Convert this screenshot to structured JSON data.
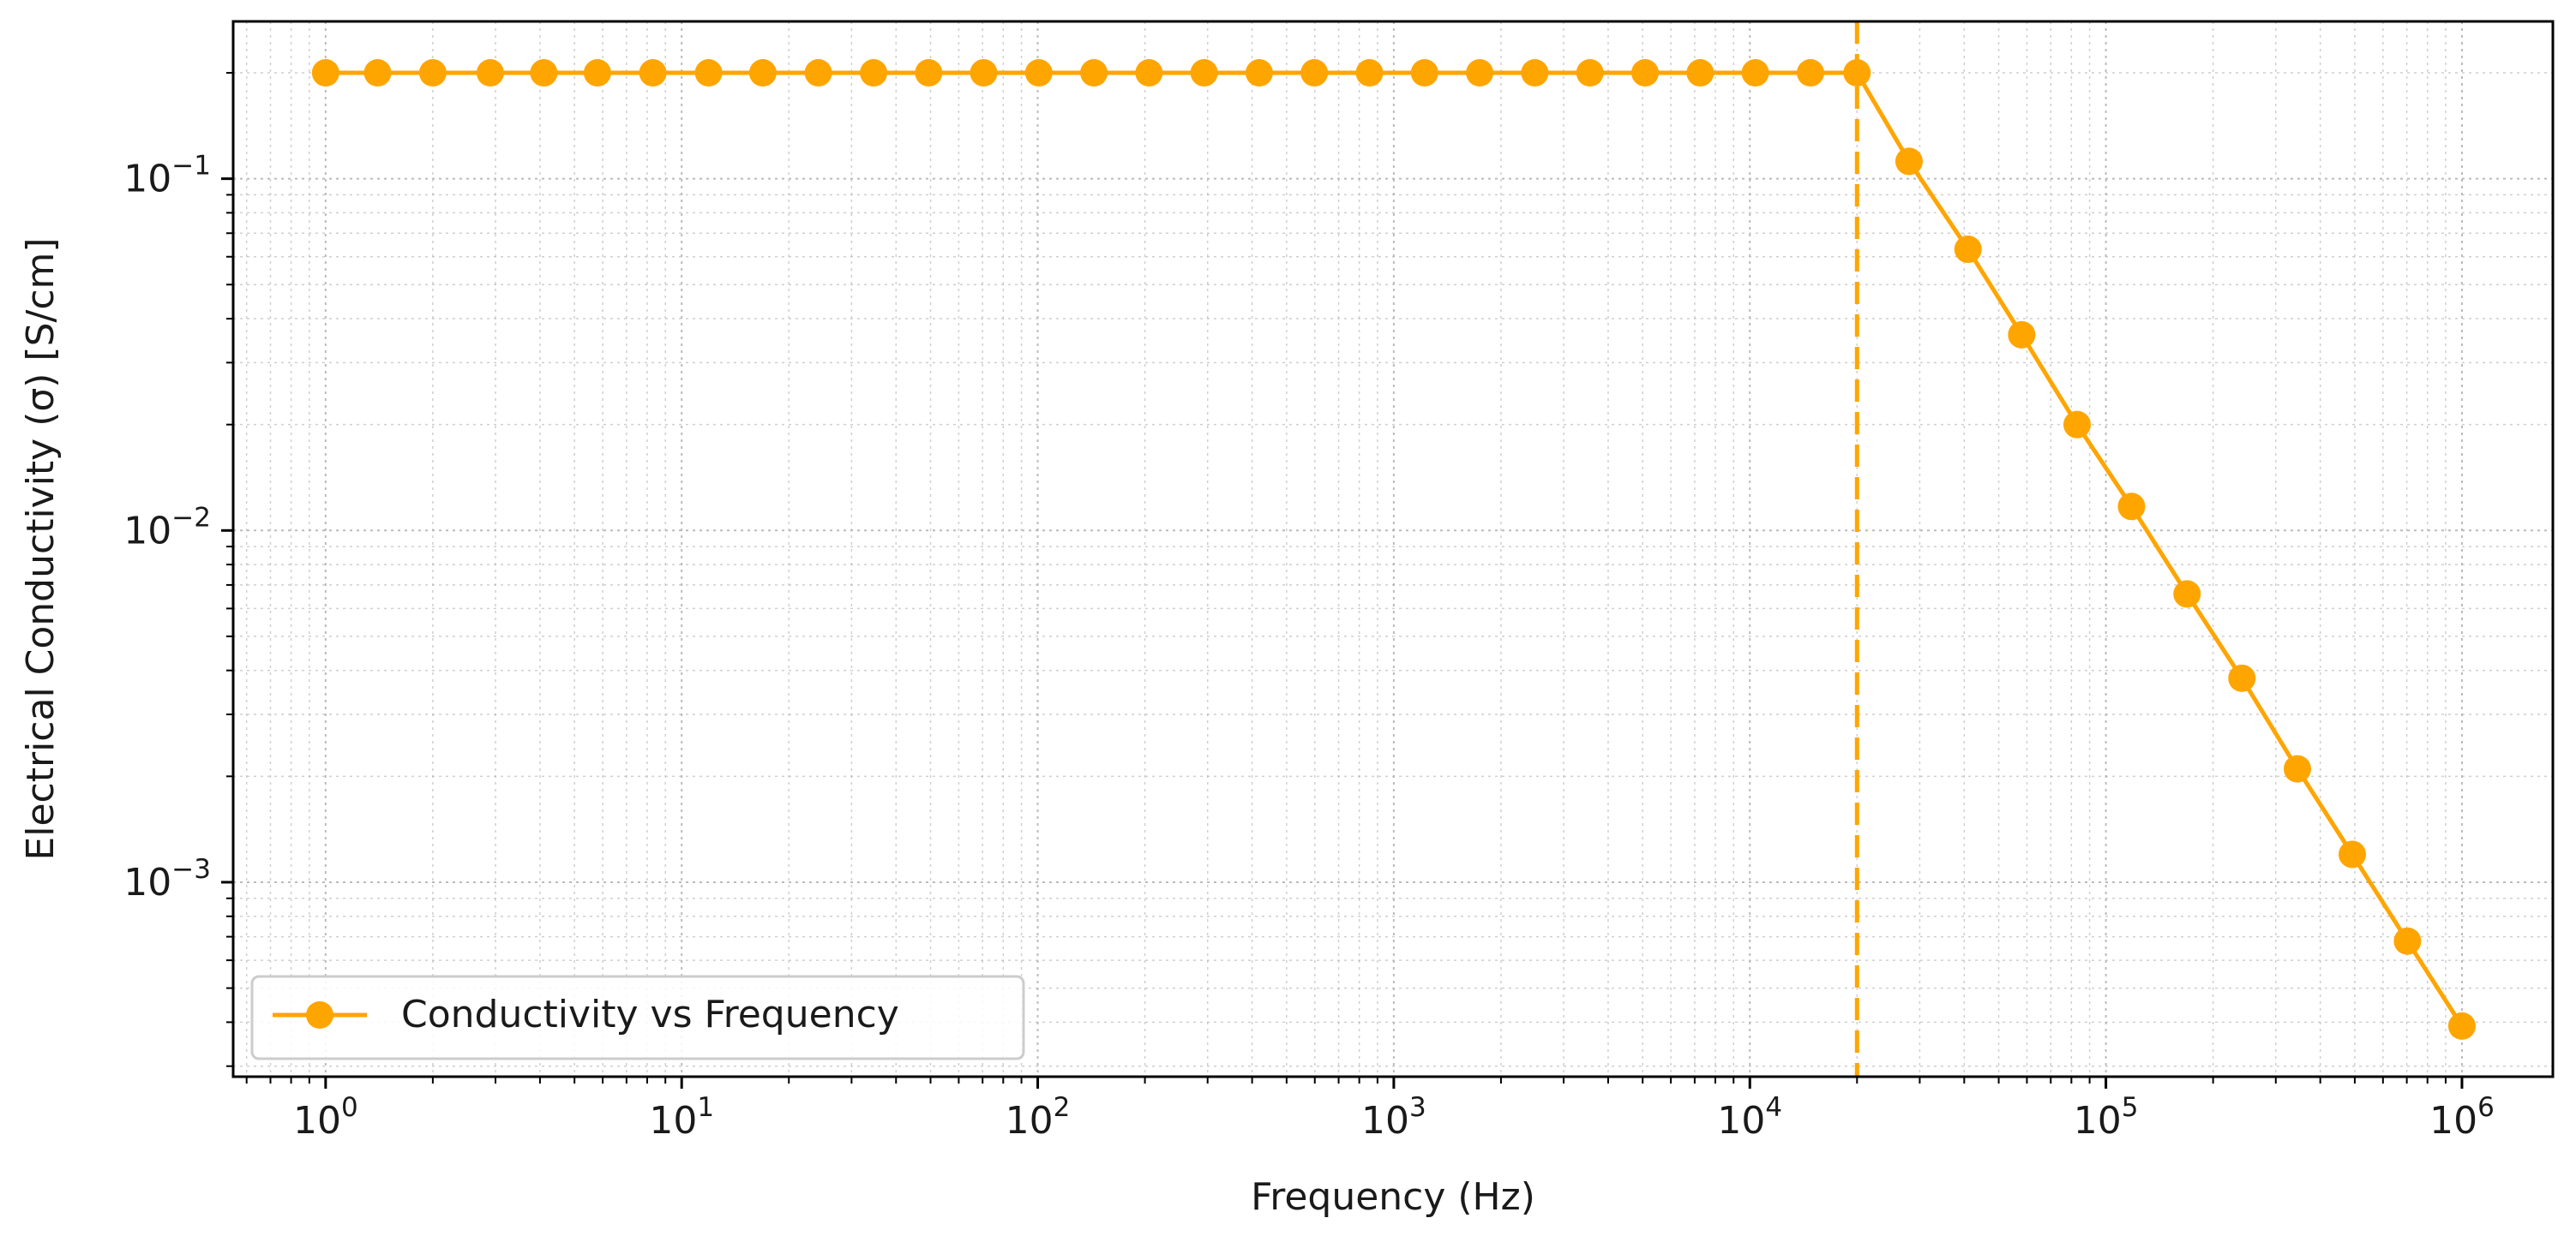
{
  "chart_data": {
    "type": "line",
    "xlabel": "Frequency (Hz)",
    "ylabel": "Electrical Conductivity (σ) [S/cm]",
    "xscale": "log",
    "yscale": "log",
    "xlim": [
      0.55,
      1800000
    ],
    "ylim": [
      0.00028,
      0.28
    ],
    "x_ticks": [
      {
        "value": 1,
        "base": "10",
        "exp": "0"
      },
      {
        "value": 10,
        "base": "10",
        "exp": "1"
      },
      {
        "value": 100,
        "base": "10",
        "exp": "2"
      },
      {
        "value": 1000,
        "base": "10",
        "exp": "3"
      },
      {
        "value": 10000,
        "base": "10",
        "exp": "4"
      },
      {
        "value": 100000,
        "base": "10",
        "exp": "5"
      },
      {
        "value": 1000000,
        "base": "10",
        "exp": "6"
      }
    ],
    "y_ticks": [
      {
        "value": 0.001,
        "base": "10",
        "exp": "−3"
      },
      {
        "value": 0.01,
        "base": "10",
        "exp": "−2"
      },
      {
        "value": 0.1,
        "base": "10",
        "exp": "−1"
      }
    ],
    "grid": true,
    "grid_style": "dotted",
    "legend_position": "lower-left",
    "reference_line": {
      "orientation": "vertical",
      "x": 20000,
      "style": "dashed",
      "color": "#FFA500"
    },
    "series": [
      {
        "name": "Conductivity vs Frequency",
        "color": "#FFA500",
        "marker": "circle",
        "x": [
          1,
          1.4,
          2,
          2.9,
          4.1,
          5.8,
          8.3,
          11.9,
          16.9,
          24.2,
          34.6,
          49.4,
          70.5,
          100.7,
          143.8,
          205.4,
          293.3,
          418.9,
          598.2,
          854.4,
          1220,
          1743,
          2489,
          3556,
          5079,
          7254,
          10360,
          14800,
          20000,
          28000,
          41000,
          58000,
          83000,
          118000,
          169000,
          241000,
          345000,
          492000,
          703000,
          1000000
        ],
        "y": [
          0.2,
          0.2,
          0.2,
          0.2,
          0.2,
          0.2,
          0.2,
          0.2,
          0.2,
          0.2,
          0.2,
          0.2,
          0.2,
          0.2,
          0.2,
          0.2,
          0.2,
          0.2,
          0.2,
          0.2,
          0.2,
          0.2,
          0.2,
          0.2,
          0.2,
          0.2,
          0.2,
          0.2,
          0.2,
          0.112,
          0.063,
          0.036,
          0.02,
          0.0117,
          0.0066,
          0.0038,
          0.0021,
          0.0012,
          0.00068,
          0.00039
        ]
      }
    ]
  }
}
